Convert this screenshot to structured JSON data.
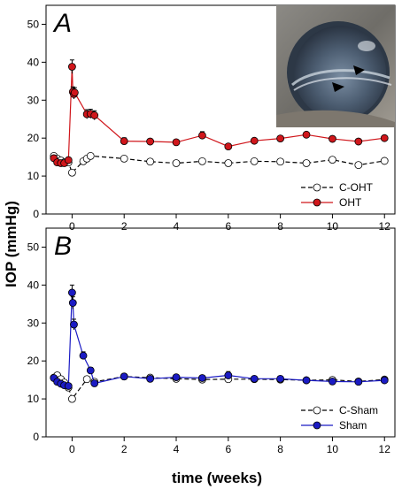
{
  "chart_data": {
    "type": "line",
    "xlabel": "time (weeks)",
    "ylabel": "IOP (mmHg)",
    "xlim": [
      -1,
      12.4
    ],
    "ylim": [
      0,
      55
    ],
    "xticks": [
      0,
      2,
      4,
      6,
      8,
      10,
      12
    ],
    "yticks": [
      0,
      10,
      20,
      30,
      40,
      50
    ],
    "panels": [
      {
        "label": "A",
        "legend_position": "bottom-right",
        "inset_photo": true,
        "series": [
          {
            "name": "C-OHT",
            "style": "dashed",
            "color": "#000000",
            "marker_fill": "#ffffff",
            "x": [
              -0.7,
              -0.57,
              -0.43,
              -0.3,
              -0.14,
              0,
              0.43,
              0.57,
              0.71,
              2,
              3,
              4,
              5,
              6,
              7,
              8,
              9,
              10,
              11,
              12
            ],
            "y": [
              15.3,
              14.6,
              14.1,
              13.6,
              13.6,
              10.9,
              13.9,
              14.6,
              15.3,
              14.6,
              13.8,
              13.4,
              13.9,
              13.4,
              13.9,
              13.8,
              13.4,
              14.3,
              12.9,
              14.0
            ],
            "err": [
              0.5,
              0.4,
              0.4,
              0.4,
              0.4,
              0.5,
              0.4,
              0.4,
              0.4,
              0.4,
              0.4,
              0.4,
              0.4,
              0.4,
              0.4,
              0.4,
              0.4,
              0.4,
              0.4,
              0.4
            ]
          },
          {
            "name": "OHT",
            "style": "solid",
            "color": "#d0161b",
            "marker_fill": "#d0161b",
            "x": [
              -0.7,
              -0.57,
              -0.43,
              -0.3,
              -0.14,
              0,
              0.03,
              0.07,
              0.1,
              0.57,
              0.71,
              0.86,
              2,
              3,
              4,
              5,
              6,
              7,
              8,
              9,
              10,
              11,
              12
            ],
            "y": [
              14.7,
              13.6,
              13.4,
              13.4,
              14.2,
              38.8,
              32.2,
              31.6,
              32.0,
              26.3,
              26.4,
              26.0,
              19.2,
              19.1,
              18.9,
              20.7,
              17.8,
              19.3,
              19.9,
              20.9,
              19.8,
              19.1,
              20.0
            ],
            "err": [
              0.7,
              0.5,
              0.5,
              0.5,
              0.6,
              1.8,
              1.3,
              1.3,
              1.3,
              1.2,
              1.2,
              1.2,
              0.9,
              0.6,
              0.6,
              1.0,
              0.6,
              0.6,
              0.6,
              0.6,
              0.6,
              0.6,
              0.6
            ]
          }
        ]
      },
      {
        "label": "B",
        "legend_position": "bottom-right",
        "inset_photo": false,
        "series": [
          {
            "name": "C-Sham",
            "style": "dashed",
            "color": "#000000",
            "marker_fill": "#ffffff",
            "x": [
              -0.7,
              -0.57,
              -0.43,
              -0.3,
              -0.14,
              0,
              0.57,
              0.86,
              2,
              3,
              4,
              5,
              6,
              7,
              8,
              9,
              10,
              11,
              12
            ],
            "y": [
              15.6,
              16.2,
              15.2,
              14.3,
              13.0,
              10.0,
              15.2,
              14.5,
              15.9,
              15.6,
              15.3,
              15.1,
              15.2,
              15.2,
              15.1,
              14.9,
              15.0,
              14.6,
              15.1
            ],
            "err": [
              0.5,
              0.5,
              0.4,
              0.4,
              0.4,
              0.5,
              0.5,
              0.4,
              0.4,
              0.4,
              0.4,
              0.4,
              0.5,
              0.4,
              0.4,
              0.4,
              0.4,
              0.4,
              0.4
            ]
          },
          {
            "name": "Sham",
            "style": "solid",
            "color": "#1b1bc4",
            "marker_fill": "#1b1bc4",
            "x": [
              -0.7,
              -0.57,
              -0.43,
              -0.3,
              -0.14,
              0,
              0.03,
              0.07,
              0.43,
              0.71,
              0.86,
              2,
              3,
              4,
              5,
              6,
              7,
              8,
              9,
              10,
              11,
              12
            ],
            "y": [
              15.5,
              14.5,
              14.0,
              13.6,
              13.4,
              38.0,
              35.3,
              29.6,
              21.4,
              17.5,
              14.1,
              15.9,
              15.3,
              15.7,
              15.5,
              16.2,
              15.3,
              15.3,
              14.9,
              14.6,
              14.5,
              14.9
            ],
            "err": [
              0.6,
              0.5,
              0.5,
              0.5,
              0.5,
              2.0,
              1.6,
              1.4,
              1.0,
              0.8,
              0.6,
              0.5,
              0.5,
              0.5,
              0.5,
              1.0,
              0.5,
              0.5,
              0.5,
              0.5,
              0.5,
              0.5
            ]
          }
        ]
      }
    ]
  }
}
